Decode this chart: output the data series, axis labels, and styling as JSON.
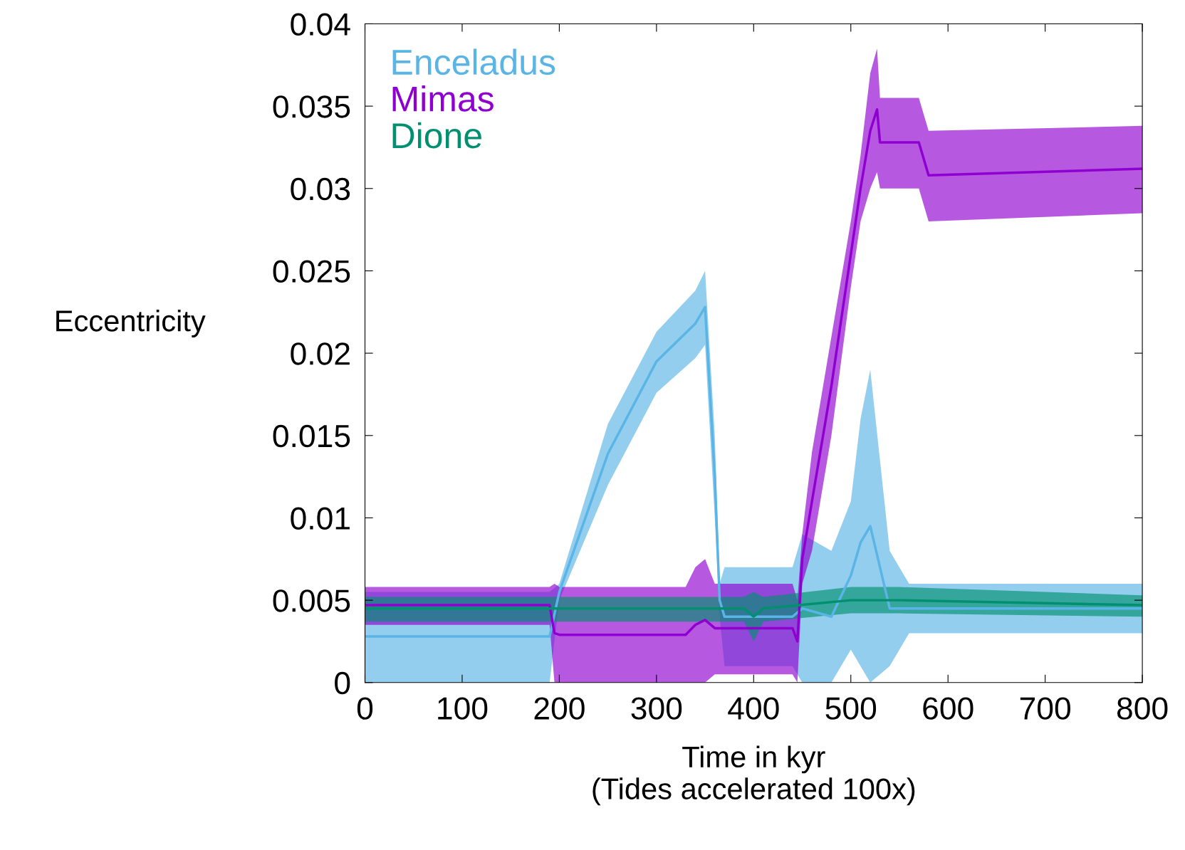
{
  "chart_data": {
    "type": "line",
    "xlabel": "Time in kyr\n(Tides accelerated 100x)",
    "ylabel": "Eccentricity",
    "xlim": [
      0,
      800
    ],
    "xticks": [
      0,
      100,
      200,
      300,
      400,
      500,
      600,
      700,
      800
    ],
    "ylim": [
      0,
      0.04
    ],
    "yticks": [
      {
        "value": 0,
        "label": "0"
      },
      0.005,
      0.01,
      0.015,
      0.02,
      0.025,
      0.03,
      0.035,
      0.04
    ],
    "legend": "top left",
    "grid": false,
    "series": [
      {
        "name": "Enceladus",
        "color": "#5ab4e5",
        "x": [
          0,
          190,
          200,
          250,
          300,
          340,
          350,
          360,
          365,
          370,
          440,
          450,
          480,
          500,
          510,
          520,
          540,
          560,
          600,
          800
        ],
        "lower": [
          0.0,
          0.0,
          0.005,
          0.012,
          0.0176,
          0.0197,
          0.0205,
          0.01,
          0.004,
          0.001,
          0.001,
          0.0,
          0.0,
          0.002,
          0.001,
          0.0,
          0.001,
          0.003,
          0.003,
          0.003
        ],
        "upper": [
          0.0055,
          0.0055,
          0.006,
          0.0157,
          0.0213,
          0.0238,
          0.025,
          0.015,
          0.006,
          0.007,
          0.007,
          0.009,
          0.008,
          0.011,
          0.016,
          0.019,
          0.008,
          0.006,
          0.006,
          0.006
        ],
        "values": [
          0.0028,
          0.0028,
          0.0055,
          0.0139,
          0.0195,
          0.0218,
          0.0228,
          0.0125,
          0.005,
          0.004,
          0.004,
          0.0045,
          0.004,
          0.0065,
          0.0085,
          0.0095,
          0.0045,
          0.0045,
          0.0045,
          0.0045
        ]
      },
      {
        "name": "Mimas",
        "color": "#8f00d0",
        "x": [
          0,
          190,
          195,
          200,
          330,
          340,
          350,
          360,
          440,
          445,
          450,
          460,
          480,
          500,
          510,
          520,
          527,
          530,
          570,
          580,
          800
        ],
        "lower": [
          0.0035,
          0.0035,
          0.0,
          0.0,
          0.0,
          0.0,
          0.0,
          0.0005,
          0.0005,
          0.0,
          0.006,
          0.008,
          0.015,
          0.024,
          0.028,
          0.03,
          0.031,
          0.03,
          0.03,
          0.028,
          0.0285
        ],
        "upper": [
          0.0058,
          0.0058,
          0.006,
          0.0058,
          0.0058,
          0.007,
          0.0075,
          0.006,
          0.006,
          0.005,
          0.009,
          0.014,
          0.021,
          0.028,
          0.032,
          0.037,
          0.0385,
          0.0355,
          0.0355,
          0.0335,
          0.0338
        ],
        "values": [
          0.0047,
          0.0047,
          0.003,
          0.0029,
          0.0029,
          0.0035,
          0.0038,
          0.0033,
          0.0033,
          0.0025,
          0.0075,
          0.011,
          0.018,
          0.026,
          0.03,
          0.0335,
          0.0348,
          0.0328,
          0.0328,
          0.0308,
          0.0312
        ]
      },
      {
        "name": "Dione",
        "color": "#009070",
        "x": [
          0,
          390,
          400,
          410,
          500,
          550,
          800
        ],
        "lower": [
          0.0037,
          0.0037,
          0.0025,
          0.0037,
          0.0042,
          0.0042,
          0.004
        ],
        "upper": [
          0.0052,
          0.0052,
          0.0055,
          0.0052,
          0.0058,
          0.0058,
          0.0053
        ],
        "values": [
          0.0045,
          0.0045,
          0.004,
          0.0045,
          0.005,
          0.005,
          0.0047
        ]
      }
    ]
  }
}
